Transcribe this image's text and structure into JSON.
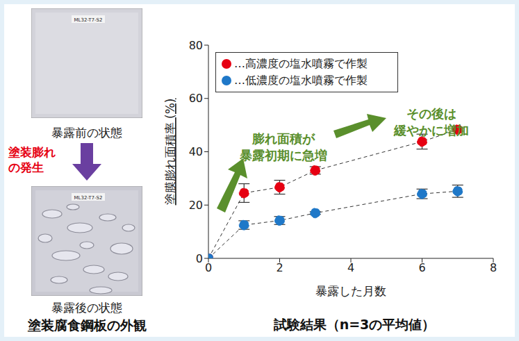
{
  "chart_data": {
    "type": "line",
    "title": "試験結果（n=3の平均値）",
    "x_label": "暴露した月数",
    "y_label": "塗膜膨れ面積率 (%)",
    "x": [
      0,
      1,
      2,
      3,
      6,
      7
    ],
    "series": [
      {
        "name": "…高濃度の塩水噴霧で作製",
        "color": "#e60012",
        "values": [
          0,
          24.5,
          26.7,
          33,
          43.8,
          48.3
        ],
        "errors": [
          0,
          3.5,
          2.6,
          1.4,
          2.8,
          0.6
        ],
        "marker": "circle",
        "line_style": "dashed"
      },
      {
        "name": "…低濃度の塩水噴霧で作製",
        "color": "#1f78c8",
        "values": [
          0,
          12.5,
          14.2,
          17,
          24.2,
          25.2
        ],
        "errors": [
          0,
          1.6,
          1.5,
          0.5,
          1.8,
          2.3
        ],
        "marker": "circle",
        "line_style": "dashed"
      }
    ],
    "xlim": [
      0,
      8
    ],
    "xticks": [
      0,
      2,
      4,
      6,
      8
    ],
    "ylim": [
      0,
      80
    ],
    "yticks": [
      0,
      20,
      40,
      60,
      80
    ],
    "grid": false,
    "legend": "upper left",
    "annotations": [
      {
        "text": [
          "膨れ面積が",
          "暴露初期に急増"
        ],
        "color": "#5a8f2c"
      },
      {
        "text": [
          "その後は",
          "緩やかに増加"
        ],
        "color": "#5a8f2c"
      }
    ]
  },
  "photo_panel": {
    "title": "塗装腐食鋼板の外観",
    "before": {
      "caption": "暴露前の状態",
      "tag": "ML32-T7-S2"
    },
    "after": {
      "caption": "暴露後の状態",
      "tag": "ML32-T7-S2"
    },
    "transition": {
      "text": [
        "塗装膨れ",
        "の発生"
      ],
      "color": "#e60012",
      "arrow_color": "#6a3fa0"
    }
  }
}
